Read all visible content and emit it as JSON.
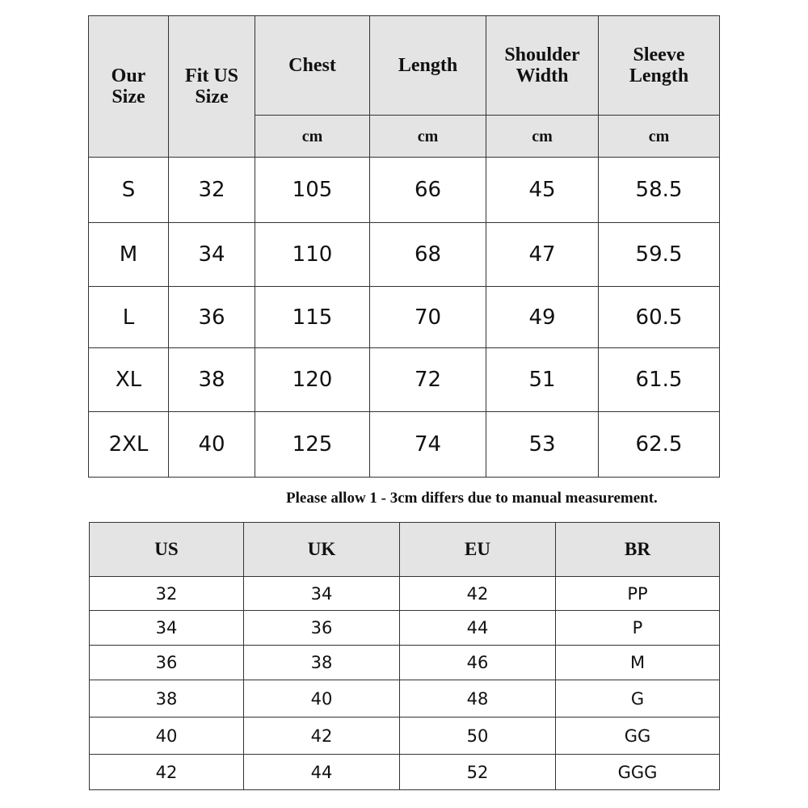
{
  "size_table": {
    "headers": [
      "Our Size",
      "Fit US Size",
      "Chest",
      "Length",
      "Shoulder Width",
      "Sleeve Length"
    ],
    "unit": "cm",
    "rows": [
      [
        "S",
        "32",
        "105",
        "66",
        "45",
        "58.5"
      ],
      [
        "M",
        "34",
        "110",
        "68",
        "47",
        "59.5"
      ],
      [
        "L",
        "36",
        "115",
        "70",
        "49",
        "60.5"
      ],
      [
        "XL",
        "38",
        "120",
        "72",
        "51",
        "61.5"
      ],
      [
        "2XL",
        "40",
        "125",
        "74",
        "53",
        "62.5"
      ]
    ]
  },
  "note": "Please allow 1 - 3cm differs due to manual measurement.",
  "conversion_table": {
    "headers": [
      "US",
      "UK",
      "EU",
      "BR"
    ],
    "rows": [
      [
        "32",
        "34",
        "42",
        "PP"
      ],
      [
        "34",
        "36",
        "44",
        "P"
      ],
      [
        "36",
        "38",
        "46",
        "M"
      ],
      [
        "38",
        "40",
        "48",
        "G"
      ],
      [
        "40",
        "42",
        "50",
        "GG"
      ],
      [
        "42",
        "44",
        "52",
        "GGG"
      ]
    ]
  },
  "colors": {
    "header_bg": "#e4e4e4",
    "border": "#333333"
  }
}
